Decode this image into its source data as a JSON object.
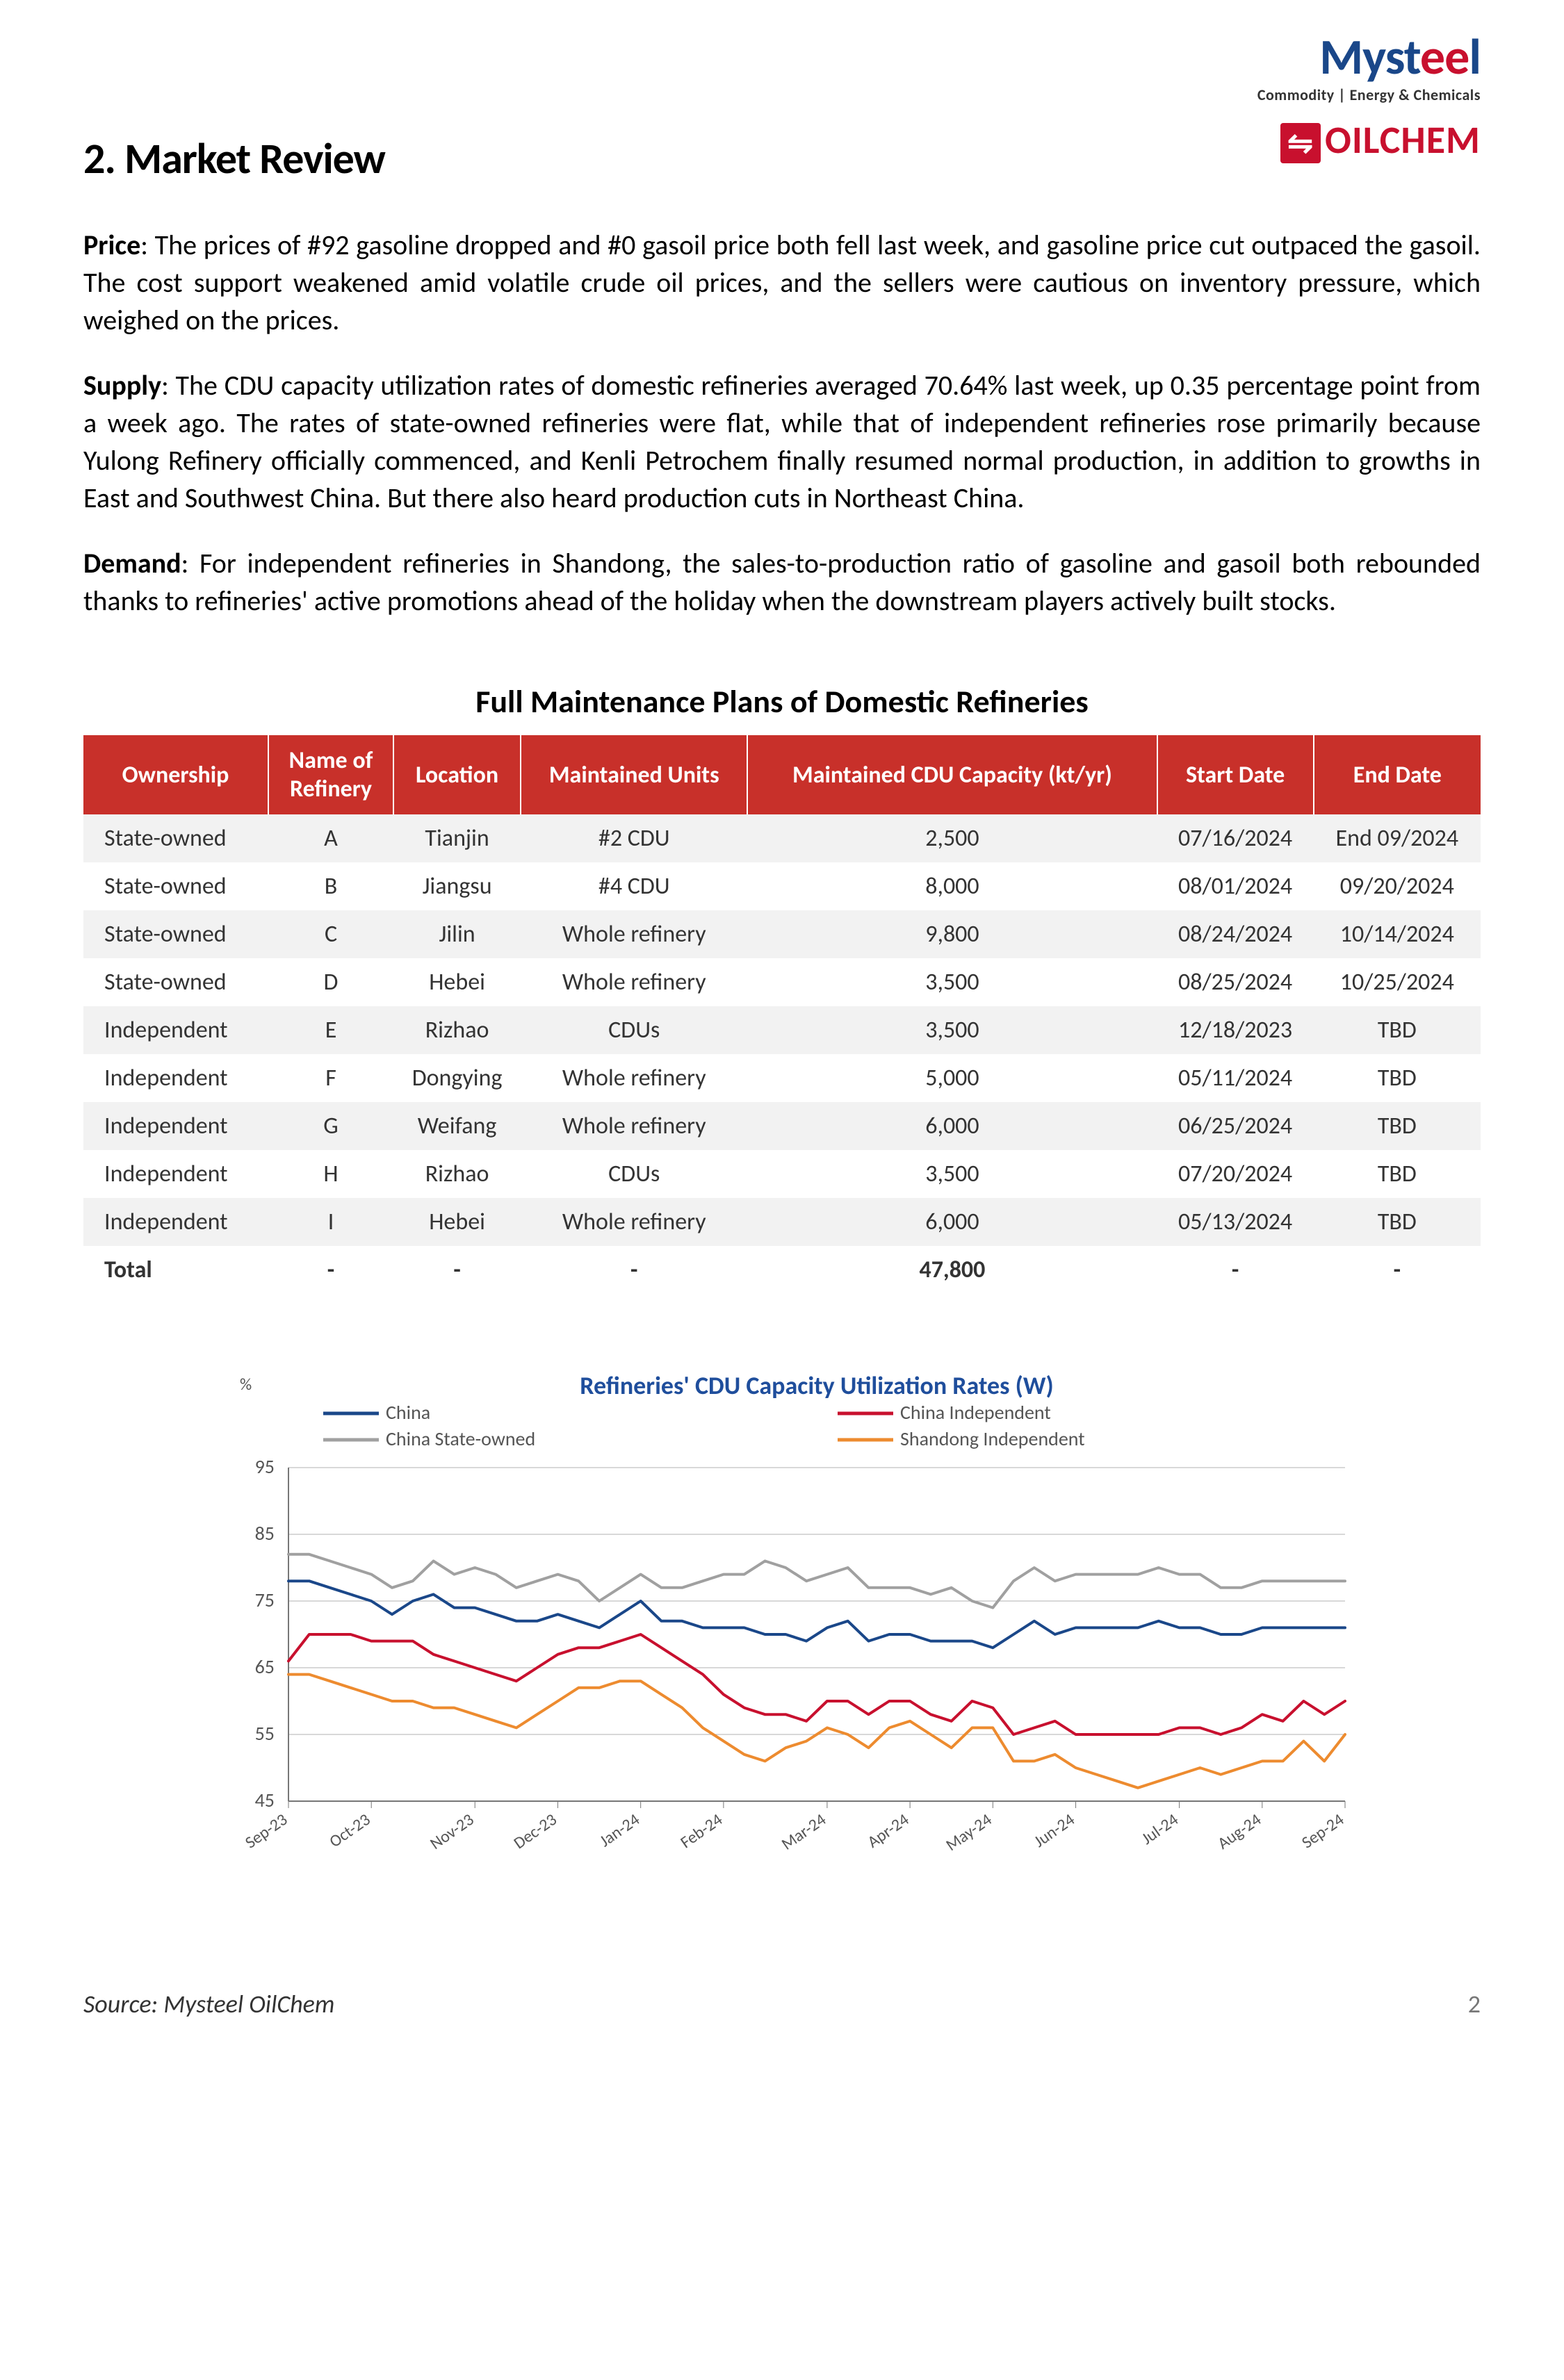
{
  "logos": {
    "mysteel_pre": "Myst",
    "mysteel_e": "e",
    "mysteel_e2": "e",
    "mysteel_post": "l",
    "tagline": "Commodity | Energy & Chemicals",
    "oilchem_icon": "⇋",
    "oilchem": "OILCHEM"
  },
  "section_title": "2. Market Review",
  "paragraphs": {
    "price_label": "Price",
    "price_text": ": The prices of #92 gasoline dropped and #0 gasoil price both fell last week, and gasoline price cut outpaced the gasoil. The cost support weakened amid volatile crude oil prices, and the sellers were cautious on inventory pressure, which weighed on the prices.",
    "supply_label": "Supply",
    "supply_text": ": The CDU capacity utilization rates of domestic refineries averaged 70.64% last week, up 0.35 percentage point from a week ago. The rates of state-owned refineries were flat, while that of independent refineries rose primarily because Yulong Refinery officially commenced, and Kenli Petrochem finally resumed normal production, in addition to growths in East and Southwest China. But there also heard production cuts in Northeast China.",
    "demand_label": "Demand",
    "demand_text": ": For independent refineries in Shandong, the sales-to-production ratio of gasoline and gasoil both rebounded thanks to refineries' active promotions ahead of the holiday when the downstream players actively built stocks."
  },
  "table": {
    "title": "Full Maintenance Plans of Domestic Refineries",
    "columns": [
      "Ownership",
      "Name of Refinery",
      "Location",
      "Maintained Units",
      "Maintained CDU Capacity (kt/yr)",
      "Start Date",
      "End Date"
    ],
    "rows": [
      [
        "State-owned",
        "A",
        "Tianjin",
        "#2 CDU",
        "2,500",
        "07/16/2024",
        "End 09/2024"
      ],
      [
        "State-owned",
        "B",
        "Jiangsu",
        "#4 CDU",
        "8,000",
        "08/01/2024",
        "09/20/2024"
      ],
      [
        "State-owned",
        "C",
        "Jilin",
        "Whole refinery",
        "9,800",
        "08/24/2024",
        "10/14/2024"
      ],
      [
        "State-owned",
        "D",
        "Hebei",
        "Whole refinery",
        "3,500",
        "08/25/2024",
        "10/25/2024"
      ],
      [
        "Independent",
        "E",
        "Rizhao",
        "CDUs",
        "3,500",
        "12/18/2023",
        "TBD"
      ],
      [
        "Independent",
        "F",
        "Dongying",
        "Whole refinery",
        "5,000",
        "05/11/2024",
        "TBD"
      ],
      [
        "Independent",
        "G",
        "Weifang",
        "Whole refinery",
        "6,000",
        "06/25/2024",
        "TBD"
      ],
      [
        "Independent",
        "H",
        "Rizhao",
        "CDUs",
        "3,500",
        "07/20/2024",
        "TBD"
      ],
      [
        "Independent",
        "I",
        "Hebei",
        "Whole refinery",
        "6,000",
        "05/13/2024",
        "TBD"
      ]
    ],
    "total_row": [
      "Total",
      "-",
      "-",
      "-",
      "47,800",
      "-",
      "-"
    ],
    "header_bg": "#c8302a",
    "header_fg": "#ffffff",
    "odd_row_bg": "#f2f2f2"
  },
  "chart": {
    "title": "Refineries' CDU Capacity Utilization Rates (W)",
    "title_color": "#1f4e9c",
    "title_fontsize": 36,
    "y_unit": "%",
    "ylim": [
      45,
      95
    ],
    "ytick_step": 10,
    "yticks": [
      45,
      55,
      65,
      75,
      85,
      95
    ],
    "x_labels": [
      "Sep-23",
      "Oct-23",
      "Nov-23",
      "Dec-23",
      "Jan-24",
      "Feb-24",
      "Mar-24",
      "Apr-24",
      "May-24",
      "Jun-24",
      "Jul-24",
      "Aug-24",
      "Sep-24"
    ],
    "background_color": "#ffffff",
    "grid_color": "#b0b0b0",
    "axis_color": "#777777",
    "line_width": 4,
    "series": [
      {
        "name": "China",
        "color": "#1a4789",
        "values": [
          78,
          78,
          77,
          76,
          75,
          73,
          75,
          76,
          74,
          74,
          73,
          72,
          72,
          73,
          72,
          71,
          73,
          75,
          72,
          72,
          71,
          71,
          71,
          70,
          70,
          69,
          71,
          72,
          69,
          70,
          70,
          69,
          69,
          69,
          68,
          70,
          72,
          70,
          71,
          71,
          71,
          71,
          72,
          71,
          71,
          70,
          70,
          71,
          71,
          71,
          71,
          71
        ]
      },
      {
        "name": "China Independent",
        "color": "#c8102e",
        "values": [
          66,
          70,
          70,
          70,
          69,
          69,
          69,
          67,
          66,
          65,
          64,
          63,
          65,
          67,
          68,
          68,
          69,
          70,
          68,
          66,
          64,
          61,
          59,
          58,
          58,
          57,
          60,
          60,
          58,
          60,
          60,
          58,
          57,
          60,
          59,
          55,
          56,
          57,
          55,
          55,
          55,
          55,
          55,
          56,
          56,
          55,
          56,
          58,
          57,
          60,
          58,
          60
        ]
      },
      {
        "name": "China State-owned",
        "color": "#a0a0a0",
        "values": [
          82,
          82,
          81,
          80,
          79,
          77,
          78,
          81,
          79,
          80,
          79,
          77,
          78,
          79,
          78,
          75,
          77,
          79,
          77,
          77,
          78,
          79,
          79,
          81,
          80,
          78,
          79,
          80,
          77,
          77,
          77,
          76,
          77,
          75,
          74,
          78,
          80,
          78,
          79,
          79,
          79,
          79,
          80,
          79,
          79,
          77,
          77,
          78,
          78,
          78,
          78,
          78
        ]
      },
      {
        "name": "Shandong Independent",
        "color": "#ed8b2f",
        "values": [
          64,
          64,
          63,
          62,
          61,
          60,
          60,
          59,
          59,
          58,
          57,
          56,
          58,
          60,
          62,
          62,
          63,
          63,
          61,
          59,
          56,
          54,
          52,
          51,
          53,
          54,
          56,
          55,
          53,
          56,
          57,
          55,
          53,
          56,
          56,
          51,
          51,
          52,
          50,
          49,
          48,
          47,
          48,
          49,
          50,
          49,
          50,
          51,
          51,
          54,
          51,
          55
        ]
      }
    ],
    "legend_pos": "top",
    "label_fontsize": 26,
    "tick_fontsize": 24
  },
  "footer": {
    "source": "Source: Mysteel OilChem",
    "page": "2"
  }
}
